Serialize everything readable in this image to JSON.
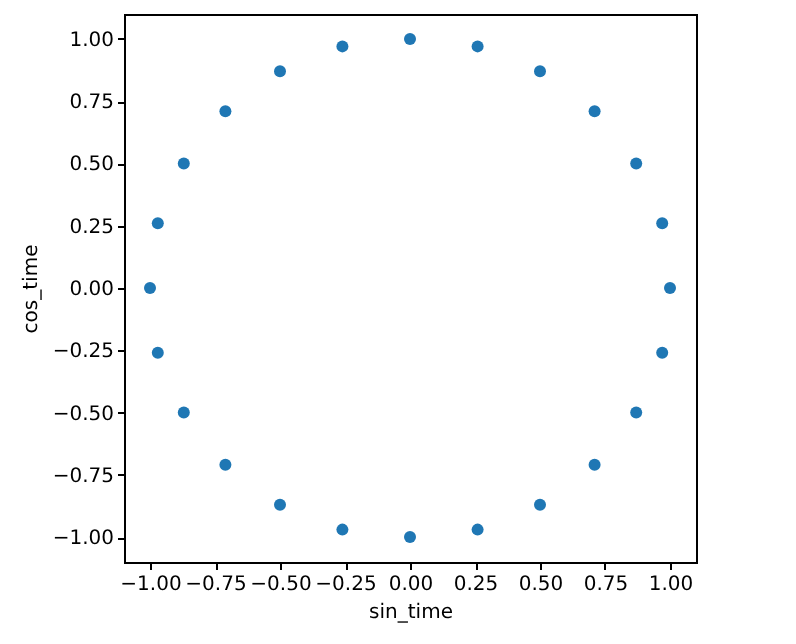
{
  "chart_data": {
    "type": "scatter",
    "xlabel": "sin_time",
    "ylabel": "cos_time",
    "marker": "circle",
    "grid": false,
    "x": [
      0,
      0.26,
      0.5,
      0.71,
      0.87,
      0.97,
      1,
      0.97,
      0.87,
      0.71,
      0.5,
      0.26,
      0,
      -0.26,
      -0.5,
      -0.71,
      -0.87,
      -0.97,
      -1,
      -0.97,
      -0.87,
      -0.71,
      -0.5,
      -0.26
    ],
    "series": [
      {
        "color": "#1f77b4",
        "values": [
          1,
          0.97,
          0.87,
          0.71,
          0.5,
          0.26,
          0,
          -0.26,
          -0.5,
          -0.71,
          -0.87,
          -0.97,
          -1,
          -0.97,
          -0.87,
          -0.71,
          -0.5,
          -0.26,
          0,
          0.26,
          0.5,
          0.71,
          0.87,
          0.97
        ]
      }
    ],
    "xlim": [
      -1.1,
      1.1
    ],
    "ylim": [
      -1.1,
      1.1
    ],
    "xticks": [
      {
        "value": -1,
        "label": "−1.00"
      },
      {
        "value": -0.75,
        "label": "−0.75"
      },
      {
        "value": -0.5,
        "label": "−0.50"
      },
      {
        "value": -0.25,
        "label": "−0.25"
      },
      {
        "value": 0,
        "label": "0.00"
      },
      0.25,
      {
        "value": 0.5,
        "label": "0.50"
      },
      0.75,
      {
        "value": 1,
        "label": "1.00"
      }
    ],
    "yticks": [
      {
        "value": -1,
        "label": "−1.00"
      },
      {
        "value": -0.75,
        "label": "−0.75"
      },
      {
        "value": -0.5,
        "label": "−0.50"
      },
      {
        "value": -0.25,
        "label": "−0.25"
      },
      {
        "value": 0,
        "label": "0.00"
      },
      0.25,
      {
        "value": 0.5,
        "label": "0.50"
      },
      0.75,
      {
        "value": 1,
        "label": "1.00"
      }
    ]
  }
}
